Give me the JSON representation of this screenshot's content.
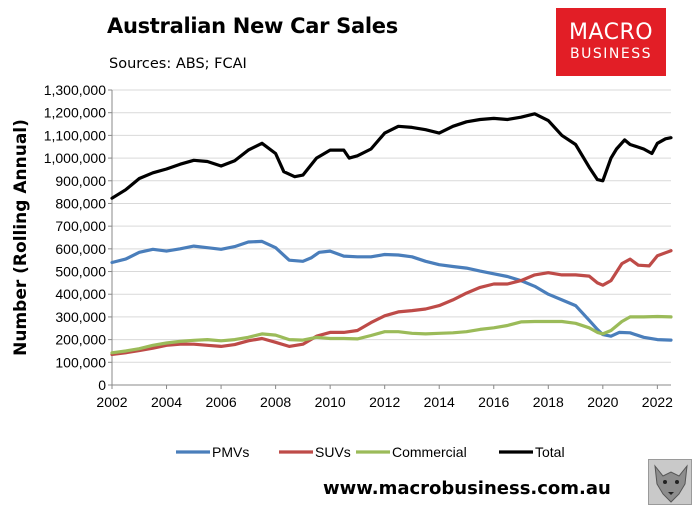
{
  "header": {
    "title": "Australian New Car Sales",
    "subtitle": "Sources: ABS; FCAI"
  },
  "brand": {
    "line1": "MACRO",
    "line2": "BUSINESS",
    "color": "#e21e26"
  },
  "footer": {
    "url": "www.macrobusiness.com.au"
  },
  "chart_data": {
    "type": "line",
    "title": "Australian New Car Sales",
    "ylabel": "Number (Rolling Annual)",
    "xlabel": "",
    "ylim": [
      0,
      1300000
    ],
    "xlim": [
      2002,
      2022.5
    ],
    "yticks": [
      0,
      100000,
      200000,
      300000,
      400000,
      500000,
      600000,
      700000,
      800000,
      900000,
      1000000,
      1100000,
      1200000,
      1300000
    ],
    "ytick_labels": [
      "0",
      "100,000",
      "200,000",
      "300,000",
      "400,000",
      "500,000",
      "600,000",
      "700,000",
      "800,000",
      "900,000",
      "1,000,000",
      "1,100,000",
      "1,200,000",
      "1,300,000"
    ],
    "xticks": [
      2002,
      2004,
      2006,
      2008,
      2010,
      2012,
      2014,
      2016,
      2018,
      2020,
      2022
    ],
    "xtick_labels": [
      "2002",
      "2004",
      "2006",
      "2008",
      "2010",
      "2012",
      "2014",
      "2016",
      "2018",
      "2020",
      "2022"
    ],
    "grid": "horizontal",
    "legend": "bottom",
    "series": [
      {
        "name": "PMVs",
        "color": "#4a7ebb",
        "points": [
          [
            2002,
            540000
          ],
          [
            2002.5,
            555000
          ],
          [
            2003,
            585000
          ],
          [
            2003.5,
            598000
          ],
          [
            2004,
            590000
          ],
          [
            2004.5,
            600000
          ],
          [
            2005,
            612000
          ],
          [
            2005.5,
            605000
          ],
          [
            2006,
            598000
          ],
          [
            2006.5,
            610000
          ],
          [
            2007,
            630000
          ],
          [
            2007.5,
            633000
          ],
          [
            2008,
            605000
          ],
          [
            2008.5,
            550000
          ],
          [
            2009,
            545000
          ],
          [
            2009.3,
            560000
          ],
          [
            2009.6,
            585000
          ],
          [
            2010,
            590000
          ],
          [
            2010.5,
            568000
          ],
          [
            2011,
            565000
          ],
          [
            2011.5,
            565000
          ],
          [
            2012,
            575000
          ],
          [
            2012.5,
            573000
          ],
          [
            2013,
            565000
          ],
          [
            2013.5,
            545000
          ],
          [
            2014,
            530000
          ],
          [
            2014.5,
            522000
          ],
          [
            2015,
            515000
          ],
          [
            2015.5,
            502000
          ],
          [
            2016,
            490000
          ],
          [
            2016.5,
            478000
          ],
          [
            2017,
            460000
          ],
          [
            2017.5,
            435000
          ],
          [
            2018,
            400000
          ],
          [
            2018.5,
            375000
          ],
          [
            2019,
            350000
          ],
          [
            2019.5,
            285000
          ],
          [
            2019.8,
            245000
          ],
          [
            2020,
            222000
          ],
          [
            2020.3,
            215000
          ],
          [
            2020.6,
            232000
          ],
          [
            2021,
            230000
          ],
          [
            2021.5,
            210000
          ],
          [
            2022,
            200000
          ],
          [
            2022.5,
            198000
          ]
        ]
      },
      {
        "name": "SUVs",
        "color": "#be4b48",
        "points": [
          [
            2002,
            135000
          ],
          [
            2002.5,
            142000
          ],
          [
            2003,
            152000
          ],
          [
            2003.5,
            162000
          ],
          [
            2004,
            175000
          ],
          [
            2004.5,
            180000
          ],
          [
            2005,
            180000
          ],
          [
            2005.5,
            175000
          ],
          [
            2006,
            170000
          ],
          [
            2006.5,
            178000
          ],
          [
            2007,
            195000
          ],
          [
            2007.5,
            205000
          ],
          [
            2008,
            188000
          ],
          [
            2008.5,
            170000
          ],
          [
            2009,
            180000
          ],
          [
            2009.5,
            215000
          ],
          [
            2010,
            232000
          ],
          [
            2010.5,
            232000
          ],
          [
            2011,
            240000
          ],
          [
            2011.5,
            275000
          ],
          [
            2012,
            305000
          ],
          [
            2012.5,
            322000
          ],
          [
            2013,
            328000
          ],
          [
            2013.5,
            335000
          ],
          [
            2014,
            350000
          ],
          [
            2014.5,
            375000
          ],
          [
            2015,
            405000
          ],
          [
            2015.5,
            430000
          ],
          [
            2016,
            445000
          ],
          [
            2016.5,
            445000
          ],
          [
            2017,
            460000
          ],
          [
            2017.5,
            485000
          ],
          [
            2018,
            495000
          ],
          [
            2018.5,
            485000
          ],
          [
            2019,
            485000
          ],
          [
            2019.5,
            480000
          ],
          [
            2019.8,
            450000
          ],
          [
            2020,
            440000
          ],
          [
            2020.3,
            460000
          ],
          [
            2020.7,
            535000
          ],
          [
            2021,
            555000
          ],
          [
            2021.3,
            528000
          ],
          [
            2021.7,
            525000
          ],
          [
            2022,
            570000
          ],
          [
            2022.5,
            592000
          ]
        ]
      },
      {
        "name": "Commercial",
        "color": "#9bbb59",
        "points": [
          [
            2002,
            142000
          ],
          [
            2002.5,
            150000
          ],
          [
            2003,
            160000
          ],
          [
            2003.5,
            175000
          ],
          [
            2004,
            185000
          ],
          [
            2004.5,
            192000
          ],
          [
            2005,
            197000
          ],
          [
            2005.5,
            200000
          ],
          [
            2006,
            195000
          ],
          [
            2006.5,
            200000
          ],
          [
            2007,
            210000
          ],
          [
            2007.5,
            225000
          ],
          [
            2008,
            220000
          ],
          [
            2008.5,
            200000
          ],
          [
            2009,
            198000
          ],
          [
            2009.5,
            210000
          ],
          [
            2010,
            205000
          ],
          [
            2010.5,
            205000
          ],
          [
            2011,
            203000
          ],
          [
            2011.5,
            218000
          ],
          [
            2012,
            235000
          ],
          [
            2012.5,
            235000
          ],
          [
            2013,
            228000
          ],
          [
            2013.5,
            225000
          ],
          [
            2014,
            228000
          ],
          [
            2014.5,
            230000
          ],
          [
            2015,
            235000
          ],
          [
            2015.5,
            245000
          ],
          [
            2016,
            252000
          ],
          [
            2016.5,
            262000
          ],
          [
            2017,
            278000
          ],
          [
            2017.5,
            280000
          ],
          [
            2018,
            280000
          ],
          [
            2018.5,
            280000
          ],
          [
            2019,
            272000
          ],
          [
            2019.5,
            252000
          ],
          [
            2019.8,
            232000
          ],
          [
            2020,
            225000
          ],
          [
            2020.3,
            240000
          ],
          [
            2020.7,
            280000
          ],
          [
            2021,
            300000
          ],
          [
            2021.5,
            300000
          ],
          [
            2022,
            302000
          ],
          [
            2022.5,
            300000
          ]
        ]
      },
      {
        "name": "Total",
        "color": "#000000",
        "points": [
          [
            2002,
            823000
          ],
          [
            2002.5,
            860000
          ],
          [
            2003,
            910000
          ],
          [
            2003.5,
            935000
          ],
          [
            2004,
            952000
          ],
          [
            2004.5,
            973000
          ],
          [
            2005,
            990000
          ],
          [
            2005.5,
            985000
          ],
          [
            2006,
            965000
          ],
          [
            2006.5,
            988000
          ],
          [
            2007,
            1035000
          ],
          [
            2007.5,
            1065000
          ],
          [
            2008,
            1020000
          ],
          [
            2008.3,
            940000
          ],
          [
            2008.7,
            918000
          ],
          [
            2009,
            925000
          ],
          [
            2009.5,
            1000000
          ],
          [
            2010,
            1035000
          ],
          [
            2010.5,
            1035000
          ],
          [
            2010.7,
            1000000
          ],
          [
            2011,
            1010000
          ],
          [
            2011.5,
            1040000
          ],
          [
            2012,
            1110000
          ],
          [
            2012.5,
            1140000
          ],
          [
            2013,
            1135000
          ],
          [
            2013.5,
            1125000
          ],
          [
            2014,
            1110000
          ],
          [
            2014.5,
            1140000
          ],
          [
            2015,
            1160000
          ],
          [
            2015.5,
            1170000
          ],
          [
            2016,
            1175000
          ],
          [
            2016.5,
            1170000
          ],
          [
            2017,
            1180000
          ],
          [
            2017.5,
            1195000
          ],
          [
            2018,
            1165000
          ],
          [
            2018.5,
            1100000
          ],
          [
            2019,
            1060000
          ],
          [
            2019.5,
            960000
          ],
          [
            2019.8,
            905000
          ],
          [
            2020,
            900000
          ],
          [
            2020.3,
            1000000
          ],
          [
            2020.5,
            1040000
          ],
          [
            2020.8,
            1080000
          ],
          [
            2021,
            1060000
          ],
          [
            2021.5,
            1040000
          ],
          [
            2021.8,
            1020000
          ],
          [
            2022,
            1065000
          ],
          [
            2022.3,
            1085000
          ],
          [
            2022.5,
            1090000
          ]
        ]
      }
    ]
  }
}
